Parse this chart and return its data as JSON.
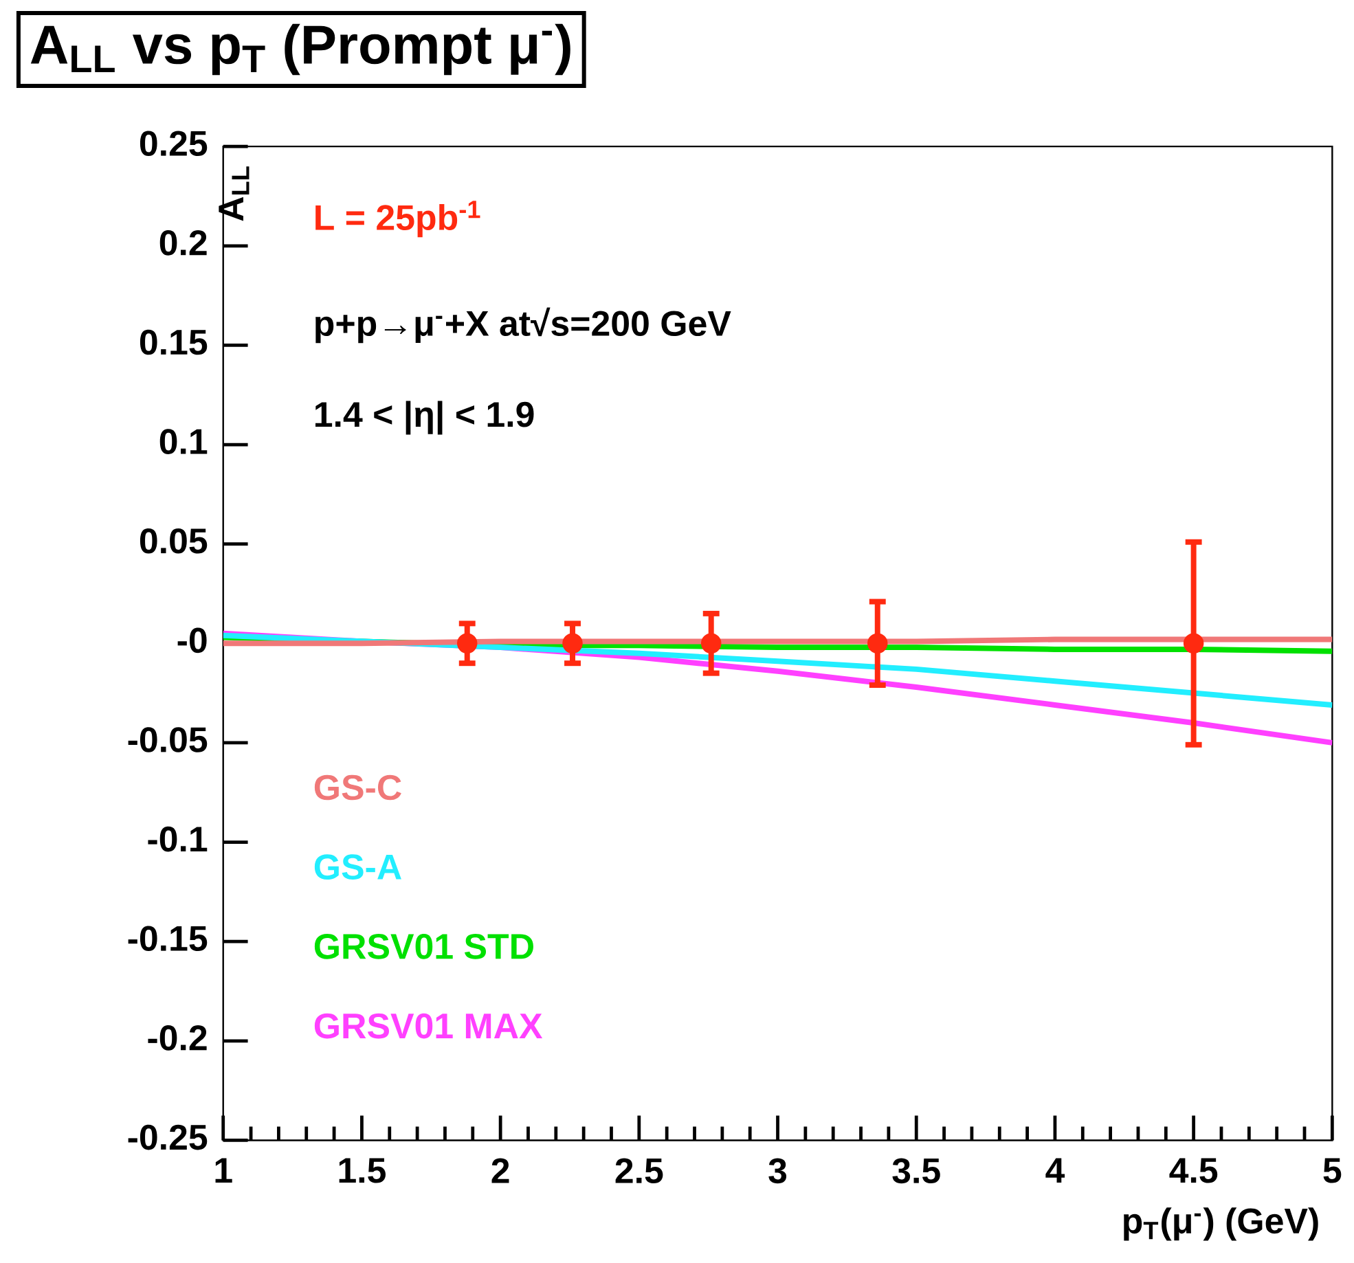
{
  "chart_data": {
    "type": "line",
    "title": "A$_{LL}$ vs p$_{T}$ (Prompt μ$^{-}$)",
    "xlabel": "p$_{T}$(μ$^{-}$) (GeV)",
    "ylabel": "A$_{LL}$",
    "annotations": [
      "L = 25pb$^{-1}$",
      "p+p→μ$^{-}$+X at√s=200 GeV",
      "1.4 < |η| < 1.9"
    ],
    "xlim": [
      1,
      5
    ],
    "ylim": [
      -0.25,
      0.25
    ],
    "xticks": [
      1,
      1.5,
      2,
      2.5,
      3,
      3.5,
      4,
      4.5,
      5
    ],
    "yticks": [
      -0.25,
      -0.2,
      -0.15,
      -0.1,
      -0.05,
      {
        "value": 0,
        "label": "-0"
      },
      0.05,
      0.1,
      0.15,
      0.2,
      0.25
    ],
    "legend": "bottom left",
    "series": [
      {
        "name": "GS-C",
        "color": "#f07878",
        "x": [
          1,
          1.5,
          2,
          2.5,
          3,
          3.5,
          4,
          4.5,
          5
        ],
        "values": [
          0,
          0,
          0.001,
          0.001,
          0.001,
          0.001,
          0.002,
          0.002,
          0.002
        ]
      },
      {
        "name": "GS-A",
        "color": "#22eeff",
        "x": [
          1,
          2,
          2.5,
          3,
          3.5,
          4,
          4.5,
          5
        ],
        "values": [
          0.004,
          -0.002,
          -0.005,
          -0.009,
          -0.013,
          -0.019,
          -0.025,
          -0.031
        ]
      },
      {
        "name": "GRSV01 STD",
        "color": "#00e000",
        "x": [
          1,
          1.5,
          2,
          2.5,
          3,
          3.5,
          4,
          4.5,
          5
        ],
        "values": [
          0.003,
          0.001,
          -0.001,
          -0.001,
          -0.002,
          -0.002,
          -0.003,
          -0.003,
          -0.004
        ]
      },
      {
        "name": "GRSV01 MAX",
        "color": "#ff40ff",
        "x": [
          1,
          1.5,
          2,
          2.5,
          3,
          3.5,
          4,
          4.5,
          5
        ],
        "values": [
          0.005,
          0.001,
          -0.002,
          -0.007,
          -0.014,
          -0.022,
          -0.031,
          -0.04,
          -0.05
        ]
      },
      {
        "type": "scatter",
        "color": "#ff2a10",
        "x": [
          1.88,
          2.26,
          2.76,
          3.36,
          4.5
        ],
        "values": [
          0,
          0,
          0,
          0,
          0
        ],
        "errors": [
          0.01,
          0.01,
          0.015,
          0.021,
          0.051
        ]
      }
    ]
  }
}
